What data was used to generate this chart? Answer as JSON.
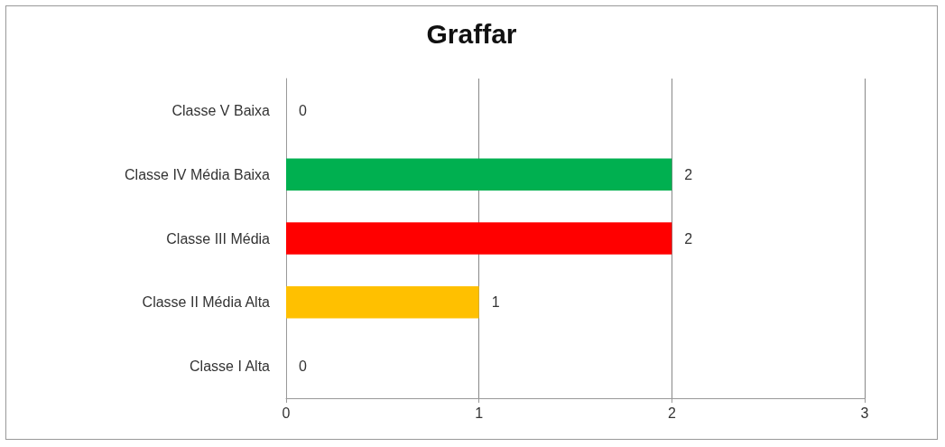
{
  "chart_data": {
    "type": "bar",
    "title": "Graffar",
    "orientation": "horizontal",
    "categories": [
      "Classe V Baixa",
      "Classe IV Média Baixa",
      "Classe III Média",
      "Classe II Média Alta",
      "Classe I Alta"
    ],
    "values": [
      0,
      2,
      2,
      1,
      0
    ],
    "colors": [
      "#1f4e79",
      "#00b050",
      "#ff0000",
      "#ffc000",
      "#1f4e79"
    ],
    "xlim": [
      0,
      3
    ],
    "xticks": [
      0,
      1,
      2,
      3
    ],
    "grid": "x",
    "data_labels": true
  }
}
